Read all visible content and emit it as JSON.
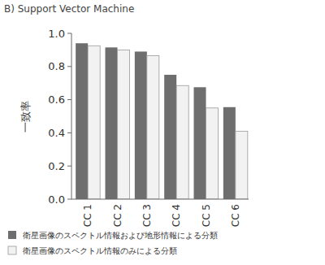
{
  "chart_data": {
    "type": "bar",
    "title": "B) Support Vector Machine",
    "y_label": "一致率",
    "categories": [
      "CC 1",
      "CC 2",
      "CC 3",
      "CC 4",
      "CC 5",
      "CC 6"
    ],
    "series": [
      {
        "name": "衛星画像のスペクトル情報および地形情報による分類",
        "color": "#6e6e6e",
        "values": [
          0.94,
          0.915,
          0.89,
          0.75,
          0.675,
          0.555
        ]
      },
      {
        "name": "衛星画像のスペクトル情報のみによる分類",
        "color": "#f2f2f2",
        "values": [
          0.925,
          0.9,
          0.865,
          0.685,
          0.55,
          0.41
        ]
      }
    ],
    "ylim": [
      0,
      1
    ],
    "yticks": [
      {
        "value": 0,
        "label": "0.0"
      },
      {
        "value": 0.2,
        "label": "0.2"
      },
      {
        "value": 0.4,
        "label": "0.4"
      },
      {
        "value": 0.6,
        "label": "0.6"
      },
      {
        "value": 0.8,
        "label": "0.8"
      },
      {
        "value": 1,
        "label": "1.0"
      }
    ],
    "grid": false,
    "legend": "bottom"
  }
}
